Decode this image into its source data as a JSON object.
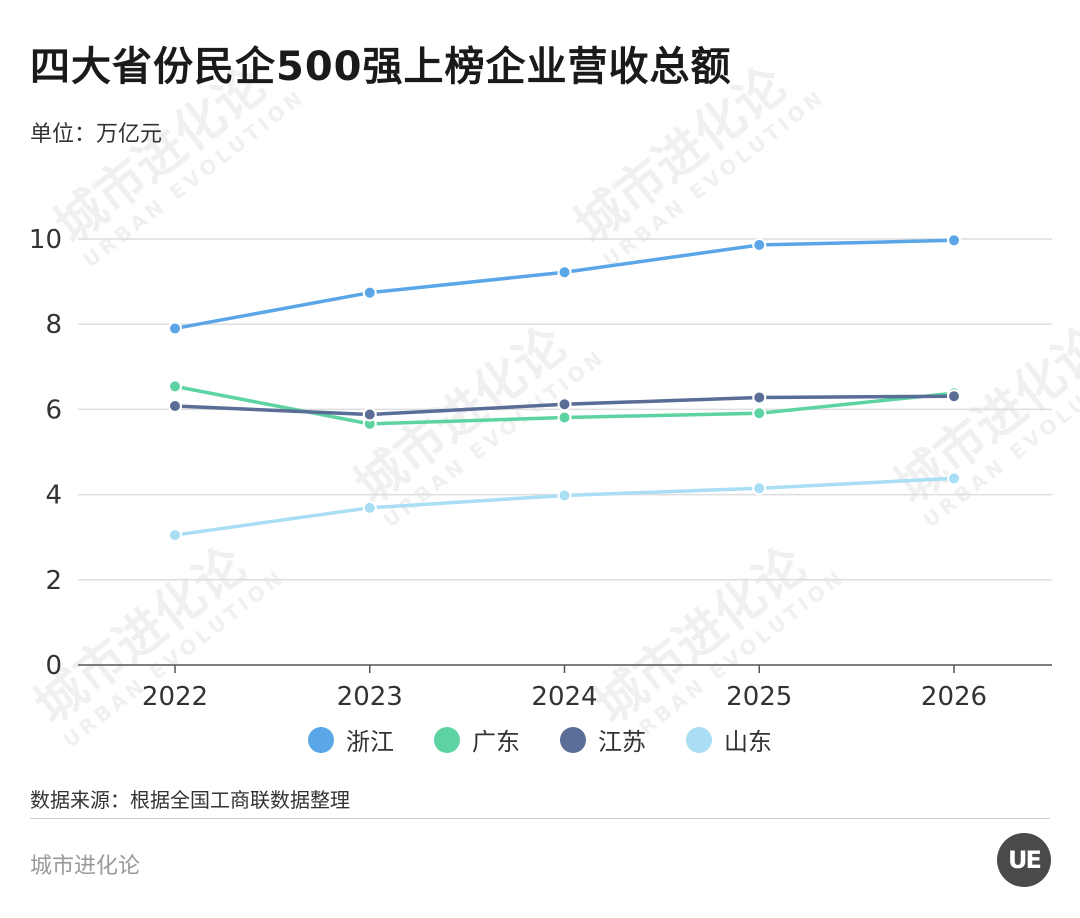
{
  "header": {
    "title": "四大省份民企500强上榜企业营收总额",
    "unit": "单位：万亿元"
  },
  "footer": {
    "source": "数据来源：根据全国工商联数据整理",
    "brand": "城市进化论",
    "logo_text": "UE"
  },
  "watermark": {
    "text": "城市进化论",
    "subtext": "URBAN EVOLUTION"
  },
  "chart_data": {
    "type": "line",
    "title": "四大省份民企500强上榜企业营收总额",
    "xlabel": "",
    "ylabel": "",
    "categories": [
      "2022",
      "2023",
      "2024",
      "2025",
      "2026"
    ],
    "ylim": [
      0,
      10
    ],
    "yticks": [
      "0",
      "2",
      "4",
      "6",
      "8",
      "10"
    ],
    "grid": true,
    "legend_position": "bottom",
    "series": [
      {
        "name": "浙江",
        "color": "#5AA6E6",
        "values": [
          7.9,
          8.74,
          9.22,
          9.86,
          9.97
        ]
      },
      {
        "name": "广东",
        "color": "#5DD3A3",
        "values": [
          6.54,
          5.66,
          5.81,
          5.91,
          6.38
        ]
      },
      {
        "name": "江苏",
        "color": "#5A6D96",
        "values": [
          6.08,
          5.88,
          6.12,
          6.28,
          6.31
        ]
      },
      {
        "name": "山东",
        "color": "#A9DEF5",
        "values": [
          3.05,
          3.69,
          3.98,
          4.15,
          4.38
        ]
      }
    ]
  }
}
